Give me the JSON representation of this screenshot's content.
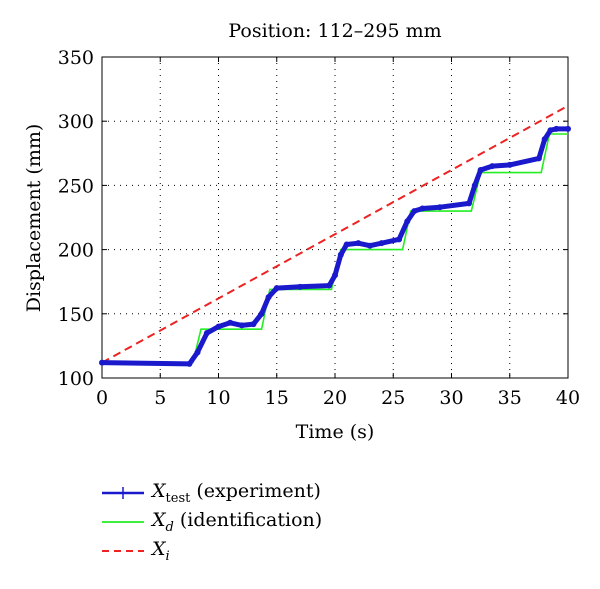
{
  "chart_data": {
    "type": "line",
    "title": "Position: 112–295 mm",
    "xlabel": "Time (s)",
    "ylabel": "Displacement (mm)",
    "xlim": [
      0,
      40
    ],
    "ylim": [
      100,
      350
    ],
    "xticks": [
      0,
      5,
      10,
      15,
      20,
      25,
      30,
      35,
      40
    ],
    "yticks": [
      100,
      150,
      200,
      250,
      300,
      350
    ],
    "grid": true,
    "legend_position": "below",
    "series": [
      {
        "name": "X_test (experiment)",
        "legend_main": "X",
        "legend_sub": "test",
        "legend_rest": " (experiment)",
        "color": "#1a1acc",
        "style": "solid-marker",
        "x": [
          0,
          7.5,
          8.2,
          9.0,
          10.0,
          11.0,
          12.0,
          13.0,
          13.7,
          14.3,
          15.0,
          17.0,
          19.5,
          20.0,
          20.5,
          21.0,
          22.0,
          23.0,
          24.0,
          25.5,
          26.2,
          26.8,
          27.5,
          29.0,
          31.5,
          32.0,
          32.5,
          33.5,
          35.0,
          37.5,
          38.0,
          38.5,
          39.0,
          40.0
        ],
        "y": [
          112,
          111,
          120,
          135,
          140,
          143,
          141,
          142,
          150,
          163,
          170,
          171,
          172,
          180,
          196,
          204,
          205,
          203,
          205,
          208,
          222,
          230,
          232,
          233,
          236,
          250,
          262,
          265,
          266,
          271,
          286,
          293,
          294,
          294
        ]
      },
      {
        "name": "X_d (identification)",
        "legend_main": "X",
        "legend_sub": "d",
        "legend_rest": " (identification)",
        "color": "#22ee22",
        "style": "solid",
        "x": [
          0,
          7.8,
          8.5,
          13.7,
          14.4,
          19.7,
          20.5,
          25.8,
          26.5,
          31.7,
          32.5,
          37.7,
          38.4,
          40.0
        ],
        "y": [
          112,
          112,
          138,
          138,
          169,
          169,
          200,
          200,
          230,
          230,
          260,
          260,
          290,
          290
        ]
      },
      {
        "name": "X_i",
        "legend_main": "X",
        "legend_sub": "i",
        "legend_rest": "",
        "color": "#ee2222",
        "style": "dashed",
        "x": [
          0,
          40
        ],
        "y": [
          112,
          312
        ]
      }
    ]
  }
}
